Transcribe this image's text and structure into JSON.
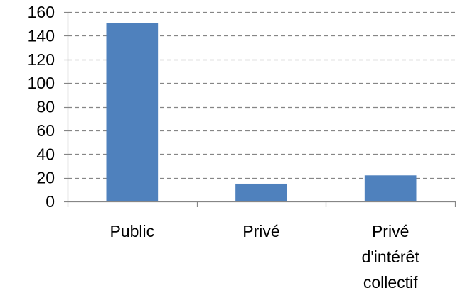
{
  "chart_data": {
    "type": "bar",
    "categories": [
      "Public",
      "Privé",
      "Privé d'intérêt collectif"
    ],
    "category_lines": [
      [
        "Public"
      ],
      [
        "Privé"
      ],
      [
        "Privé",
        "d'intérêt",
        "collectif"
      ]
    ],
    "values": [
      151,
      15,
      22
    ],
    "ylim": [
      0,
      160
    ],
    "yticks": [
      0,
      20,
      40,
      60,
      80,
      100,
      120,
      140,
      160
    ],
    "grid": true,
    "bar_color": "#4f81bd",
    "grid_color": "#868686",
    "axis_color": "#868686"
  }
}
